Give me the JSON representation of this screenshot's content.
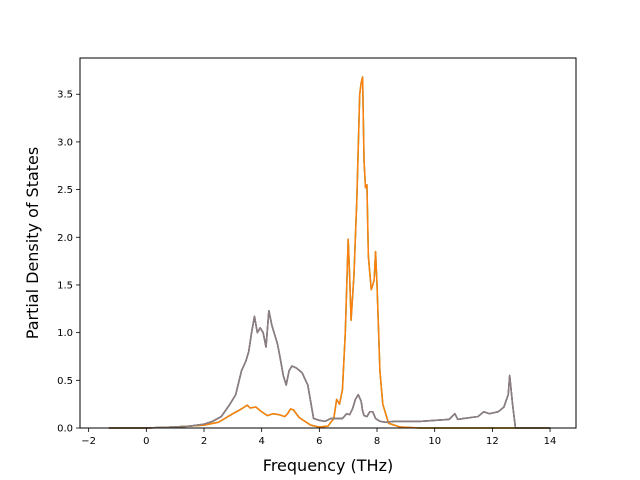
{
  "chart_data": {
    "type": "line",
    "title": "",
    "xlabel": "Frequency (THz)",
    "ylabel": "Partial Density of States",
    "xlim": [
      -2.3,
      14.9
    ],
    "ylim": [
      0,
      3.88
    ],
    "xticks": [
      -2,
      0,
      2,
      4,
      6,
      8,
      10,
      12,
      14
    ],
    "xtick_labels": [
      "−2",
      "0",
      "2",
      "4",
      "6",
      "8",
      "10",
      "12",
      "14"
    ],
    "yticks": [
      0,
      0.5,
      1.0,
      1.5,
      2.0,
      2.5,
      3.0,
      3.5
    ],
    "ytick_labels": [
      "0.0",
      "0.5",
      "1.0",
      "1.5",
      "2.0",
      "2.5",
      "3.0",
      "3.5"
    ],
    "grid": false,
    "series": [
      {
        "color": "#1f77b4",
        "x": [
          -1.3,
          0.0,
          1.0,
          1.5,
          2.0,
          2.3,
          2.6,
          2.9,
          3.1,
          3.3,
          3.45,
          3.55,
          3.65,
          3.75,
          3.85,
          3.95,
          4.05,
          4.15,
          4.25,
          4.35,
          4.45,
          4.55,
          4.65,
          4.75,
          4.85,
          4.95,
          5.05,
          5.2,
          5.4,
          5.6,
          5.8,
          6.0,
          6.2,
          6.4,
          6.6,
          6.8,
          6.95,
          7.05,
          7.15,
          7.25,
          7.35,
          7.45,
          7.5,
          7.55,
          7.65,
          7.75,
          7.85,
          7.95,
          8.1,
          8.3,
          8.6,
          9.0,
          9.5,
          10.0,
          10.5,
          10.7,
          10.8,
          11.0,
          11.5,
          11.7,
          11.9,
          12.2,
          12.4,
          12.55,
          12.6,
          12.7,
          12.8,
          13.0,
          14.0
        ],
        "y": [
          0.0,
          0.0,
          0.01,
          0.02,
          0.04,
          0.07,
          0.12,
          0.25,
          0.35,
          0.6,
          0.7,
          0.8,
          1.0,
          1.17,
          1.0,
          1.05,
          1.0,
          0.85,
          1.23,
          1.08,
          0.98,
          0.88,
          0.72,
          0.55,
          0.45,
          0.6,
          0.65,
          0.63,
          0.58,
          0.45,
          0.1,
          0.08,
          0.07,
          0.1,
          0.1,
          0.1,
          0.15,
          0.14,
          0.2,
          0.3,
          0.35,
          0.28,
          0.18,
          0.13,
          0.12,
          0.17,
          0.17,
          0.1,
          0.07,
          0.06,
          0.07,
          0.07,
          0.07,
          0.08,
          0.09,
          0.15,
          0.09,
          0.1,
          0.12,
          0.17,
          0.15,
          0.17,
          0.22,
          0.35,
          0.55,
          0.25,
          0.0,
          0.0,
          0.0
        ]
      },
      {
        "color": "#8c564b",
        "x": [
          -1.3,
          0.0,
          1.0,
          1.5,
          2.0,
          2.3,
          2.6,
          2.9,
          3.1,
          3.3,
          3.45,
          3.55,
          3.65,
          3.75,
          3.85,
          3.95,
          4.05,
          4.15,
          4.25,
          4.35,
          4.45,
          4.55,
          4.65,
          4.75,
          4.85,
          4.95,
          5.05,
          5.2,
          5.4,
          5.6,
          5.8,
          6.0,
          6.2,
          6.4,
          6.6,
          6.8,
          6.95,
          7.05,
          7.15,
          7.25,
          7.35,
          7.45,
          7.5,
          7.55,
          7.65,
          7.75,
          7.85,
          7.95,
          8.1,
          8.3,
          8.6,
          9.0,
          9.5,
          10.0,
          10.5,
          10.7,
          10.8,
          11.0,
          11.5,
          11.7,
          11.9,
          12.2,
          12.4,
          12.55,
          12.6,
          12.7,
          12.8,
          13.0,
          14.0
        ],
        "y": [
          0.0,
          0.0,
          0.01,
          0.02,
          0.04,
          0.07,
          0.12,
          0.25,
          0.35,
          0.6,
          0.7,
          0.8,
          1.0,
          1.17,
          1.0,
          1.05,
          1.0,
          0.85,
          1.23,
          1.08,
          0.98,
          0.88,
          0.72,
          0.55,
          0.45,
          0.6,
          0.65,
          0.63,
          0.58,
          0.45,
          0.1,
          0.08,
          0.07,
          0.1,
          0.1,
          0.1,
          0.15,
          0.14,
          0.2,
          0.3,
          0.35,
          0.28,
          0.18,
          0.13,
          0.12,
          0.17,
          0.17,
          0.1,
          0.07,
          0.06,
          0.07,
          0.07,
          0.07,
          0.08,
          0.09,
          0.15,
          0.09,
          0.1,
          0.12,
          0.17,
          0.15,
          0.17,
          0.22,
          0.35,
          0.55,
          0.25,
          0.0,
          0.0,
          0.0
        ]
      },
      {
        "color": "#2ca02c",
        "x": [
          -1.3,
          0.0,
          1.0,
          2.0,
          2.5,
          3.0,
          3.3,
          3.5,
          3.6,
          3.8,
          4.0,
          4.2,
          4.4,
          4.6,
          4.8,
          4.9,
          5.0,
          5.1,
          5.3,
          5.5,
          5.7,
          6.0,
          6.3,
          6.5,
          6.6,
          6.7,
          6.8,
          6.9,
          7.0,
          7.05,
          7.1,
          7.2,
          7.3,
          7.4,
          7.45,
          7.5,
          7.55,
          7.6,
          7.65,
          7.7,
          7.8,
          7.9,
          7.95,
          8.0,
          8.1,
          8.2,
          8.4,
          8.8,
          9.5,
          14.0
        ],
        "y": [
          0.0,
          0.0,
          0.01,
          0.03,
          0.06,
          0.15,
          0.2,
          0.24,
          0.21,
          0.22,
          0.17,
          0.13,
          0.15,
          0.14,
          0.12,
          0.15,
          0.2,
          0.19,
          0.11,
          0.07,
          0.03,
          0.01,
          0.02,
          0.1,
          0.3,
          0.25,
          0.4,
          1.0,
          1.98,
          1.6,
          1.13,
          1.6,
          2.4,
          3.5,
          3.62,
          3.68,
          2.8,
          2.52,
          2.55,
          1.8,
          1.45,
          1.55,
          1.85,
          1.5,
          0.6,
          0.25,
          0.05,
          0.01,
          0.0,
          0.0
        ]
      },
      {
        "color": "#ff7f0e",
        "x": [
          -1.3,
          0.0,
          1.0,
          2.0,
          2.5,
          3.0,
          3.3,
          3.5,
          3.6,
          3.8,
          4.0,
          4.2,
          4.4,
          4.6,
          4.8,
          4.9,
          5.0,
          5.1,
          5.3,
          5.5,
          5.7,
          6.0,
          6.3,
          6.5,
          6.6,
          6.7,
          6.8,
          6.9,
          7.0,
          7.05,
          7.1,
          7.2,
          7.3,
          7.4,
          7.45,
          7.5,
          7.55,
          7.6,
          7.65,
          7.7,
          7.8,
          7.9,
          7.95,
          8.0,
          8.1,
          8.2,
          8.4,
          8.8,
          9.5,
          14.0
        ],
        "y": [
          0.0,
          0.0,
          0.01,
          0.03,
          0.06,
          0.15,
          0.2,
          0.24,
          0.21,
          0.22,
          0.17,
          0.13,
          0.15,
          0.14,
          0.12,
          0.15,
          0.2,
          0.19,
          0.11,
          0.07,
          0.03,
          0.01,
          0.02,
          0.1,
          0.3,
          0.25,
          0.4,
          1.0,
          1.98,
          1.6,
          1.13,
          1.6,
          2.4,
          3.5,
          3.62,
          3.68,
          2.8,
          2.52,
          2.55,
          1.8,
          1.45,
          1.55,
          1.85,
          1.5,
          0.6,
          0.25,
          0.05,
          0.01,
          0.0,
          0.0
        ]
      },
      {
        "color": "#8c7f80",
        "x": [
          -1.3,
          0.0,
          1.0,
          1.5,
          2.0,
          2.3,
          2.6,
          2.9,
          3.1,
          3.3,
          3.45,
          3.55,
          3.65,
          3.75,
          3.85,
          3.95,
          4.05,
          4.15,
          4.25,
          4.35,
          4.45,
          4.55,
          4.65,
          4.75,
          4.85,
          4.95,
          5.05,
          5.2,
          5.4,
          5.6,
          5.8,
          6.0,
          6.2,
          6.4,
          6.6,
          6.8,
          6.95,
          7.05,
          7.15,
          7.25,
          7.35,
          7.45,
          7.5,
          7.55,
          7.65,
          7.75,
          7.85,
          7.95,
          8.1,
          8.3,
          8.6,
          9.0,
          9.5,
          10.0,
          10.5,
          10.7,
          10.8,
          11.0,
          11.5,
          11.7,
          11.9,
          12.2,
          12.4,
          12.55,
          12.6,
          12.7,
          12.8,
          13.0,
          14.0
        ],
        "y": [
          0.0,
          0.0,
          0.01,
          0.02,
          0.04,
          0.07,
          0.12,
          0.25,
          0.35,
          0.6,
          0.7,
          0.8,
          1.0,
          1.17,
          1.0,
          1.05,
          1.0,
          0.85,
          1.23,
          1.08,
          0.98,
          0.88,
          0.72,
          0.55,
          0.45,
          0.6,
          0.65,
          0.63,
          0.58,
          0.45,
          0.1,
          0.08,
          0.07,
          0.1,
          0.1,
          0.1,
          0.15,
          0.14,
          0.2,
          0.3,
          0.35,
          0.28,
          0.18,
          0.13,
          0.12,
          0.17,
          0.17,
          0.1,
          0.07,
          0.06,
          0.07,
          0.07,
          0.07,
          0.08,
          0.09,
          0.15,
          0.09,
          0.1,
          0.12,
          0.17,
          0.15,
          0.17,
          0.22,
          0.35,
          0.55,
          0.25,
          0.0,
          0.0,
          0.0
        ]
      }
    ]
  }
}
